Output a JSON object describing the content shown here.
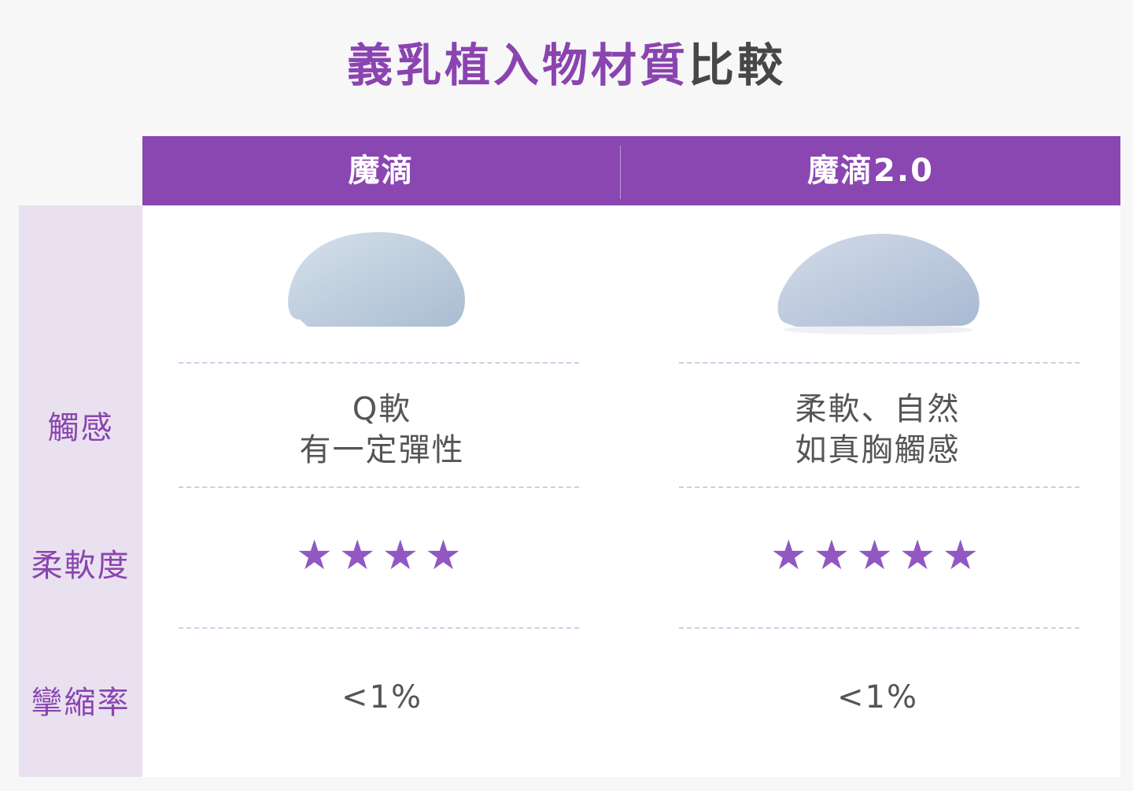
{
  "title": {
    "highlight": "義乳植入物材質",
    "rest": "比較"
  },
  "columns": [
    {
      "name": "魔滴"
    },
    {
      "name": "魔滴2.0"
    }
  ],
  "rows": {
    "feel": "觸感",
    "softness": "柔軟度",
    "contracture": "攣縮率"
  },
  "values": [
    {
      "feel_line1": "Q軟",
      "feel_line2": "有一定彈性",
      "softness_stars": 4,
      "stars": "★★★★",
      "contracture": "<1%"
    },
    {
      "feel_line1": "柔軟、自然",
      "feel_line2": "如真胸觸感",
      "softness_stars": 5,
      "stars": "★★★★★",
      "contracture": "<1%"
    }
  ],
  "colors": {
    "accent": "#8a46b1",
    "side": "#e9e1ef",
    "star": "#9257c2"
  }
}
